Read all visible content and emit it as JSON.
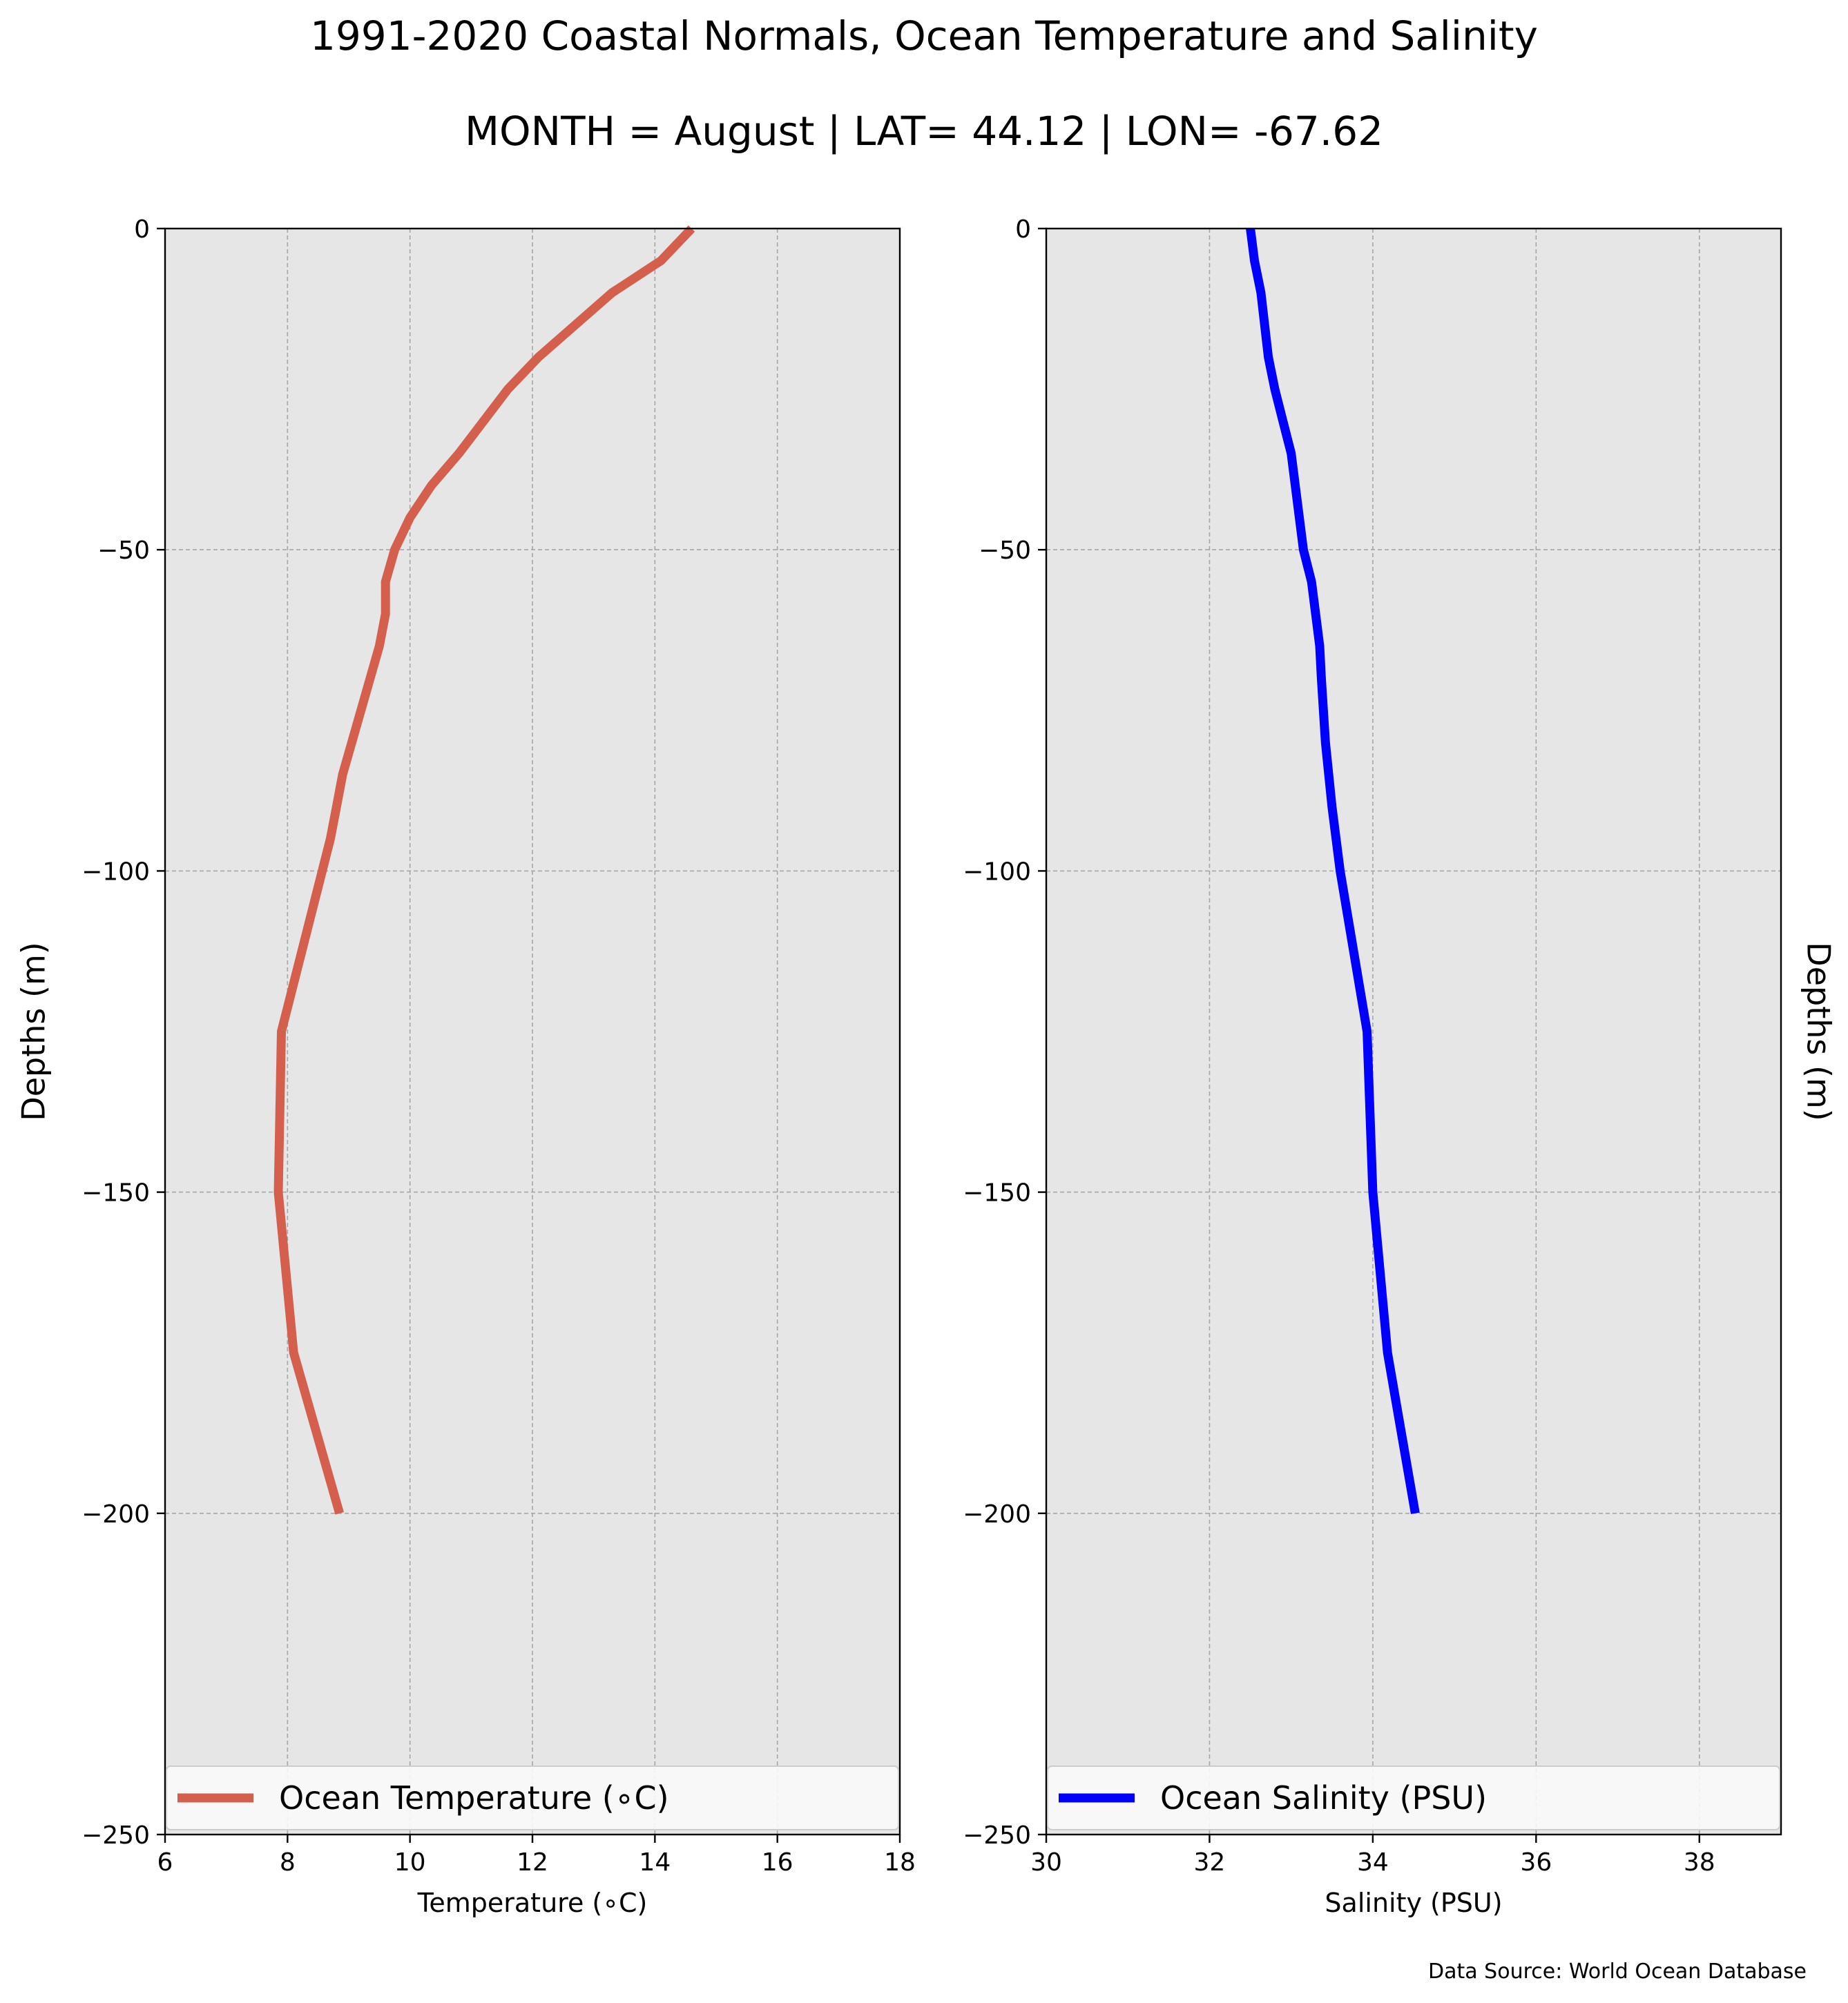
{
  "title": "1991-2020 Coastal Normals, Ocean Temperature and Salinity",
  "subtitle": "MONTH = August | LAT= 44.12 | LON= -67.62",
  "source": "Data Source: World Ocean Database",
  "colors": {
    "background": "#e6e6e6",
    "grid": "#a6a6a6",
    "temperature": "#d45f4d",
    "salinity": "#0000ff"
  },
  "chart_data": [
    {
      "type": "line",
      "xlabel": "Temperature (∘C)",
      "ylabel": "Depths (m)",
      "xlim": [
        6,
        18
      ],
      "ylim": [
        -250,
        0
      ],
      "xticks": [
        "6",
        "8",
        "10",
        "12",
        "14",
        "16",
        "18"
      ],
      "yticks": [
        "0",
        "−50",
        "−100",
        "−150",
        "−200",
        "−250"
      ],
      "grid": true,
      "legend": "bottom",
      "series": [
        {
          "name": "Ocean Temperature (∘C)",
          "color": "#d45f4d",
          "x": [
            14.6,
            14.1,
            13.3,
            12.1,
            11.6,
            11.2,
            10.8,
            10.35,
            10.0,
            9.75,
            9.6,
            9.6,
            9.5,
            9.2,
            8.9,
            8.8,
            8.7,
            7.9,
            7.85,
            8.1,
            8.85
          ],
          "y": [
            0,
            -5,
            -10,
            -20,
            -25,
            -30,
            -35,
            -40,
            -45,
            -50,
            -55,
            -60,
            -65,
            -75,
            -85,
            -90,
            -95,
            -125,
            -150,
            -175,
            -200
          ]
        }
      ]
    },
    {
      "type": "line",
      "xlabel": "Salinity (PSU)",
      "ylabel": "Depths (m)",
      "xlim": [
        30,
        39
      ],
      "ylim": [
        -250,
        0
      ],
      "xticks": [
        "30",
        "32",
        "34",
        "36",
        "38"
      ],
      "yticks": [
        "0",
        "−50",
        "−100",
        "−150",
        "−200",
        "−250"
      ],
      "grid": true,
      "legend": "bottom",
      "series": [
        {
          "name": "Ocean Salinity (PSU)",
          "color": "#0000ff",
          "x": [
            32.5,
            32.55,
            32.63,
            32.72,
            32.8,
            32.9,
            33.0,
            33.05,
            33.1,
            33.15,
            33.25,
            33.3,
            33.35,
            33.37,
            33.42,
            33.5,
            33.6,
            33.93,
            34.0,
            34.18,
            34.52
          ],
          "y": [
            0,
            -5,
            -10,
            -20,
            -25,
            -30,
            -35,
            -40,
            -45,
            -50,
            -55,
            -60,
            -65,
            -70,
            -80,
            -90,
            -100,
            -125,
            -150,
            -175,
            -200
          ]
        }
      ]
    }
  ]
}
